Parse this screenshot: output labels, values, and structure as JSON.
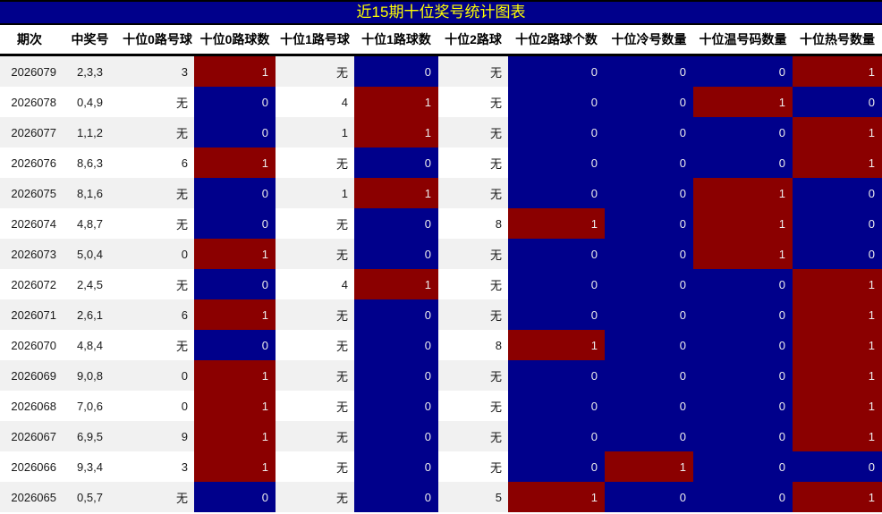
{
  "title": "近15期十位奖号统计图表",
  "colors": {
    "title_bg": "#00008B",
    "title_text": "#FFFF00",
    "heat_blue": "#00008B",
    "heat_red": "#8B0000",
    "stripe": "#F1F1F1",
    "heat_cell_text": "#EDEDED"
  },
  "chart_data": {
    "type": "table",
    "title": "近15期十位奖号统计图表",
    "columns": [
      "期次",
      "中奖号",
      "十位0路号球",
      "十位0路球数",
      "十位1路号球",
      "十位1路球数",
      "十位2路球",
      "十位2路球个数",
      "十位冷号数量",
      "十位温号码数量",
      "十位热号数量"
    ],
    "column_kinds": [
      "plain",
      "plain",
      "plain",
      "heat",
      "plain",
      "heat",
      "plain",
      "heat",
      "heat",
      "heat",
      "heat"
    ],
    "heat_rule": "value 0 = blue cell, value 1 = red cell, white text",
    "rows": [
      [
        "2026079",
        "2,3,3",
        "3",
        "1",
        "无",
        "0",
        "无",
        "0",
        "0",
        "0",
        "1"
      ],
      [
        "2026078",
        "0,4,9",
        "无",
        "0",
        "4",
        "1",
        "无",
        "0",
        "0",
        "1",
        "0"
      ],
      [
        "2026077",
        "1,1,2",
        "无",
        "0",
        "1",
        "1",
        "无",
        "0",
        "0",
        "0",
        "1"
      ],
      [
        "2026076",
        "8,6,3",
        "6",
        "1",
        "无",
        "0",
        "无",
        "0",
        "0",
        "0",
        "1"
      ],
      [
        "2026075",
        "8,1,6",
        "无",
        "0",
        "1",
        "1",
        "无",
        "0",
        "0",
        "1",
        "0"
      ],
      [
        "2026074",
        "4,8,7",
        "无",
        "0",
        "无",
        "0",
        "8",
        "1",
        "0",
        "1",
        "0"
      ],
      [
        "2026073",
        "5,0,4",
        "0",
        "1",
        "无",
        "0",
        "无",
        "0",
        "0",
        "1",
        "0"
      ],
      [
        "2026072",
        "2,4,5",
        "无",
        "0",
        "4",
        "1",
        "无",
        "0",
        "0",
        "0",
        "1"
      ],
      [
        "2026071",
        "2,6,1",
        "6",
        "1",
        "无",
        "0",
        "无",
        "0",
        "0",
        "0",
        "1"
      ],
      [
        "2026070",
        "4,8,4",
        "无",
        "0",
        "无",
        "0",
        "8",
        "1",
        "0",
        "0",
        "1"
      ],
      [
        "2026069",
        "9,0,8",
        "0",
        "1",
        "无",
        "0",
        "无",
        "0",
        "0",
        "0",
        "1"
      ],
      [
        "2026068",
        "7,0,6",
        "0",
        "1",
        "无",
        "0",
        "无",
        "0",
        "0",
        "0",
        "1"
      ],
      [
        "2026067",
        "6,9,5",
        "9",
        "1",
        "无",
        "0",
        "无",
        "0",
        "0",
        "0",
        "1"
      ],
      [
        "2026066",
        "9,3,4",
        "3",
        "1",
        "无",
        "0",
        "无",
        "0",
        "1",
        "0",
        "0"
      ],
      [
        "2026065",
        "0,5,7",
        "无",
        "0",
        "无",
        "0",
        "5",
        "1",
        "0",
        "0",
        "1"
      ]
    ]
  }
}
